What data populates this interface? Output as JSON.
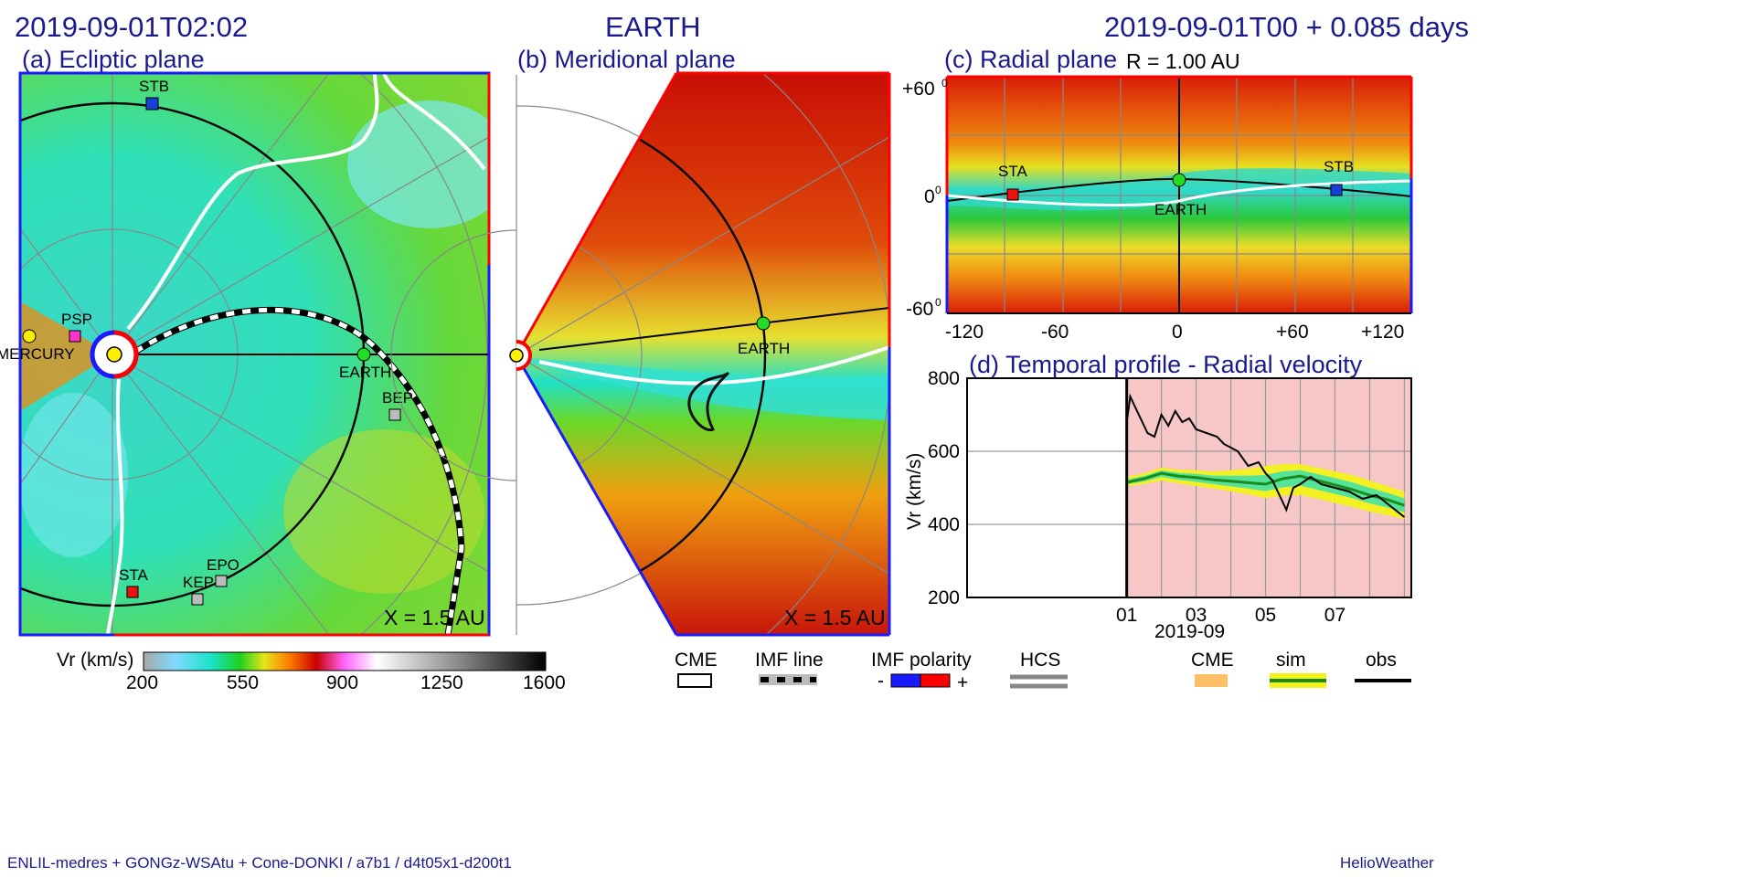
{
  "header": {
    "timestamp": "2019-09-01T02:02",
    "center_title": "EARTH",
    "run_info": "2019-09-01T00 +  0.085 days"
  },
  "panels": {
    "ecliptic": {
      "title": "(a) Ecliptic plane",
      "scale": "X = 1.5 AU",
      "bodies": [
        "STB",
        "PSP",
        "MERCURY",
        "EARTH",
        "BEP",
        "STA",
        "KEP",
        "EPO"
      ]
    },
    "meridional": {
      "title": "(b) Meridional plane",
      "scale": "X = 1.5 AU",
      "bodies": [
        "EARTH"
      ]
    },
    "radial": {
      "title": "(c) Radial plane",
      "radius": "R = 1.00 AU",
      "y_ticks": [
        "+60",
        "0",
        "-60"
      ],
      "x_ticks": [
        "-120",
        "-60",
        "0",
        "+60",
        "+120"
      ],
      "bodies": [
        "STA",
        "EARTH",
        "STB"
      ]
    },
    "temporal": {
      "title": "(d) Temporal profile - Radial velocity"
    }
  },
  "colorbar": {
    "label": "Vr (km/s)",
    "ticks": [
      "200",
      "550",
      "900",
      "1250",
      "1600"
    ],
    "colors": [
      "#a8a8a8",
      "#7fd9ff",
      "#19e3c8",
      "#1ed21e",
      "#e6e619",
      "#ff7f00",
      "#cc0000",
      "#ff66ff",
      "#ffffff",
      "#808080",
      "#000000"
    ]
  },
  "legend": {
    "cme": "CME",
    "imf_line": "IMF line",
    "imf_polarity": "IMF polarity",
    "minus": "-",
    "plus": "+",
    "hcs": "HCS",
    "cme2": "CME",
    "sim": "sim",
    "obs": "obs"
  },
  "footer": {
    "model": "ENLIL-medres + GONGz-WSAtu + Cone-DONKI / a7b1 / d4t05x1-d200t1",
    "brand": "HelioWeather"
  },
  "chart_data": {
    "type": "line",
    "title": "(d) Temporal profile - Radial velocity",
    "xlabel": "2019-09",
    "ylabel": "Vr (km/s)",
    "ylim": [
      200,
      800
    ],
    "y_ticks": [
      200,
      400,
      600,
      800
    ],
    "x_ticks": [
      "01",
      "03",
      "05",
      "07"
    ],
    "x_unit": "day of 2019-09",
    "xlim": [
      -4.6,
      8.2
    ],
    "cme_shaded_from": 0,
    "series": [
      {
        "name": "sim",
        "x": [
          0,
          0.5,
          1,
          1.5,
          2,
          2.5,
          3,
          3.5,
          4,
          4.5,
          5,
          5.5,
          6,
          6.5,
          7,
          7.5,
          8
        ],
        "values": [
          515,
          525,
          540,
          532,
          528,
          522,
          518,
          514,
          510,
          525,
          532,
          520,
          508,
          495,
          480,
          468,
          452
        ],
        "band_low": [
          505,
          510,
          520,
          512,
          505,
          498,
          490,
          482,
          472,
          478,
          480,
          470,
          458,
          448,
          435,
          425,
          415
        ],
        "band_high": [
          530,
          540,
          555,
          550,
          548,
          545,
          548,
          552,
          560,
          565,
          565,
          555,
          545,
          535,
          520,
          505,
          490
        ]
      },
      {
        "name": "obs",
        "x": [
          0,
          0.1,
          0.25,
          0.4,
          0.6,
          0.8,
          1,
          1.2,
          1.4,
          1.6,
          1.8,
          2,
          2.3,
          2.6,
          2.8,
          3,
          3.2,
          3.5,
          3.8,
          4,
          4.2,
          4.4,
          4.6,
          4.8,
          5,
          5.3,
          5.6,
          6,
          6.4,
          6.8,
          7.2,
          7.6,
          8
        ],
        "values": [
          680,
          750,
          720,
          690,
          650,
          640,
          700,
          670,
          710,
          680,
          690,
          660,
          650,
          640,
          620,
          610,
          600,
          560,
          570,
          540,
          520,
          480,
          440,
          500,
          510,
          530,
          510,
          500,
          490,
          470,
          480,
          450,
          420
        ]
      }
    ]
  }
}
